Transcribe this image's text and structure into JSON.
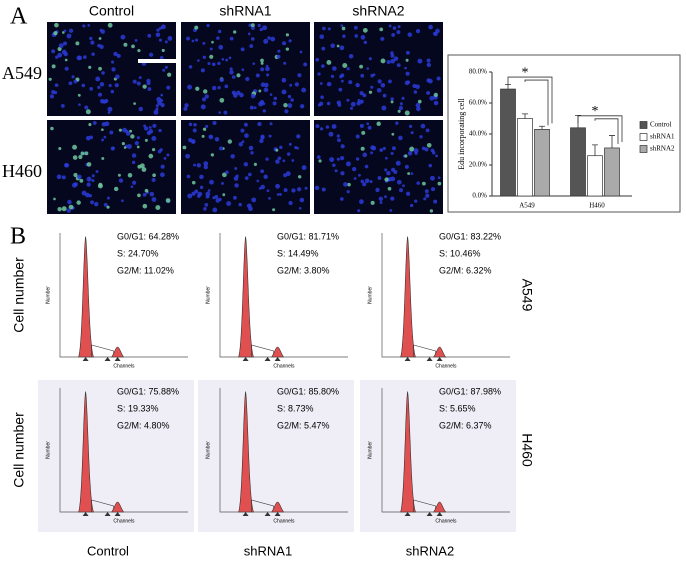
{
  "panel_a": {
    "label": "A",
    "columns": [
      "Control",
      "shRNA1",
      "shRNA2"
    ],
    "rows": [
      "A549",
      "H460"
    ]
  },
  "chart_data": {
    "type": "bar",
    "y_label": "Edu incorporating cell",
    "categories": [
      "A549",
      "H460"
    ],
    "series": [
      {
        "name": "Control",
        "color": "#555555",
        "values": [
          69,
          44
        ],
        "errors": [
          3,
          8
        ]
      },
      {
        "name": "shRNA1",
        "color": "#ffffff",
        "values": [
          50,
          26
        ],
        "errors": [
          3,
          7
        ]
      },
      {
        "name": "shRNA2",
        "color": "#aaaaaa",
        "values": [
          43,
          31
        ],
        "errors": [
          2,
          8
        ]
      }
    ],
    "ylim": [
      0,
      80
    ],
    "yticks": [
      {
        "value": 0,
        "label": "0.0%"
      },
      {
        "value": 20,
        "label": "20.0%"
      },
      {
        "value": 40,
        "label": "40.0%"
      },
      {
        "value": 60,
        "label": "60.0%"
      },
      {
        "value": 80,
        "label": "80.0%"
      }
    ],
    "annotations": [
      "*",
      "*"
    ],
    "legend": "right"
  },
  "panel_b": {
    "label": "B",
    "y_label": "Cell number",
    "x_axis": "Channels",
    "y_axis": "Number",
    "row_labels": [
      "A549",
      "H460"
    ],
    "column_labels": [
      "Control",
      "shRNA1",
      "shRNA2"
    ],
    "panels": [
      {
        "stats": [
          "G0/G1: 64.28%",
          "S: 24.70%",
          "G2/M: 11.02%"
        ]
      },
      {
        "stats": [
          "G0/G1: 81.71%",
          "S: 14.49%",
          "G2/M: 3.80%"
        ]
      },
      {
        "stats": [
          "G0/G1: 83.22%",
          "S: 10.46%",
          "G2/M: 6.32%"
        ]
      },
      {
        "stats": [
          "G0/G1: 75.88%",
          "S: 19.33%",
          "G2/M: 4.80%"
        ]
      },
      {
        "stats": [
          "G0/G1: 85.80%",
          "S: 8.73%",
          "G2/M: 5.47%"
        ]
      },
      {
        "stats": [
          "G0/G1: 87.98%",
          "S: 5.65%",
          "G2/M: 6.37%"
        ]
      }
    ]
  }
}
